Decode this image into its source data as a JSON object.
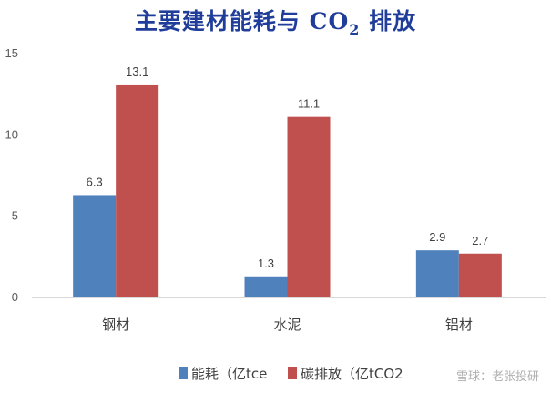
{
  "chart_data": {
    "type": "bar",
    "title_main": "主要建材能耗与 CO",
    "title_sub": "2",
    "title_tail": " 排放",
    "categories": [
      "钢材",
      "水泥",
      "铝材"
    ],
    "series": [
      {
        "name": "能耗（亿tce",
        "values": [
          6.3,
          1.3,
          2.9
        ],
        "labels": [
          "6.3",
          "1.3",
          "2.9"
        ],
        "color": "#4f81bd"
      },
      {
        "name": "碳排放（亿tCO2",
        "values": [
          13.1,
          11.1,
          2.7
        ],
        "labels": [
          "13.1",
          "11.1",
          "2.7"
        ],
        "color": "#c0504d"
      }
    ],
    "y_ticks": [
      0,
      5,
      10,
      15
    ],
    "y_tick_labels": [
      "0",
      "5",
      "10",
      "15"
    ],
    "ylim": [
      0,
      15
    ],
    "grid": false,
    "legend_placement": "bottom"
  },
  "watermark": "雪球：老张投研"
}
